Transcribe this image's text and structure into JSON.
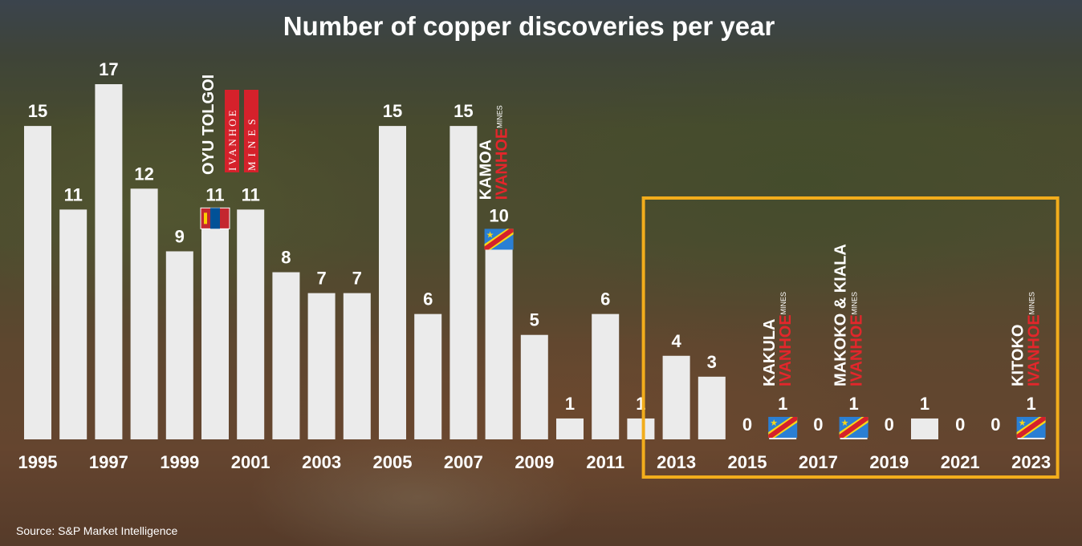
{
  "chart_data": {
    "type": "bar",
    "title": "Number of copper discoveries per year",
    "xlabel": "",
    "ylabel": "",
    "ylim": [
      0,
      17
    ],
    "categories": [
      "1995",
      "1996",
      "1997",
      "1998",
      "1999",
      "2000",
      "2001",
      "2002",
      "2003",
      "2004",
      "2005",
      "2006",
      "2007",
      "2008",
      "2009",
      "2010",
      "2011",
      "2012",
      "2013",
      "2014",
      "2015",
      "2016",
      "2017",
      "2018",
      "2019",
      "2020",
      "2021",
      "2022",
      "2023"
    ],
    "tick_labels": [
      "1995",
      "1997",
      "1999",
      "2001",
      "2003",
      "2005",
      "2007",
      "2009",
      "2011",
      "2013",
      "2015",
      "2017",
      "2019",
      "2021",
      "2023"
    ],
    "values": [
      15,
      11,
      17,
      12,
      9,
      11,
      11,
      8,
      7,
      7,
      15,
      6,
      15,
      10,
      5,
      1,
      6,
      1,
      4,
      3,
      0,
      1,
      0,
      1,
      0,
      1,
      0,
      0,
      1
    ],
    "bar_color": "#ebebeb",
    "highlight": {
      "from": "2013",
      "to": "2023",
      "color": "#f2ad1c"
    },
    "annotations": [
      {
        "year": "2000",
        "name": "OYU TOLGOI",
        "company": "IVANHOE MINES",
        "flag": "mongolia",
        "style": "seal"
      },
      {
        "year": "2008",
        "name": "KAMOA",
        "company": "IVANHOE",
        "suffix": "MINES",
        "flag": "drc"
      },
      {
        "year": "2016",
        "name": "KAKULA",
        "company": "IVANHOE",
        "suffix": "MINES",
        "flag": "drc"
      },
      {
        "year": "2018",
        "name": "MAKOKO & KIALA",
        "company": "IVANHOE",
        "suffix": "MINES",
        "flag": "drc"
      },
      {
        "year": "2023",
        "name": "KITOKO",
        "company": "IVANHOE",
        "suffix": "MINES",
        "flag": "drc"
      }
    ],
    "flag_colors": {
      "drc_blue": "#2a7fd4",
      "drc_red": "#d5212b",
      "drc_yellow": "#f7d618",
      "mongolia_red": "#c4272f",
      "mongolia_blue": "#015197",
      "mongolia_gold": "#f9cf02"
    }
  },
  "source": "Source: S&P Market Intelligence"
}
